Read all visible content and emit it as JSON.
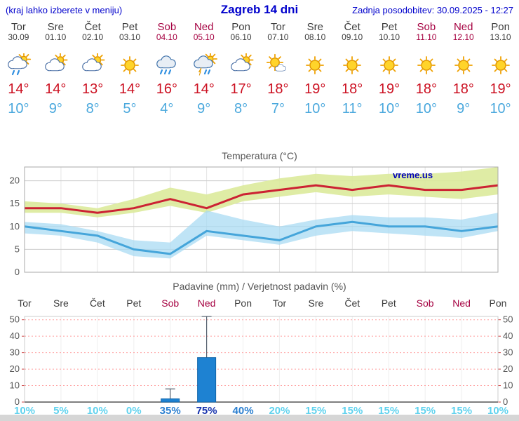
{
  "header": {
    "left_note": "(kraj lahko izberete v meniju)",
    "title": "Zagreb 14 dni",
    "updated": "Zadnja posodobitev: 30.09.2025 - 12:27"
  },
  "colors": {
    "header_blue": "#0000cc",
    "title_blue": "#0000bb",
    "weekday_gray": "#3c3c3c",
    "weekend_red": "#a50040",
    "tmax_red": "#cc1122",
    "tmin_blue": "#4aa8dd",
    "bar_blue": "#1e82d2",
    "bar_border": "#1266aa",
    "pop_low": "#5fd2ee",
    "pop_med": "#2b7fd0",
    "pop_high": "#1733ad",
    "grid_gray": "#cccccc",
    "precip_grid_red": "#ff9e9e"
  },
  "days": [
    {
      "name": "Tor",
      "date": "30.09",
      "weekend": false,
      "icon": "sun-showers",
      "tmax": "14°",
      "tmin": "10°",
      "pop": "10%",
      "pop_level": "low"
    },
    {
      "name": "Sre",
      "date": "01.10",
      "weekend": false,
      "icon": "partly-cloudy",
      "tmax": "14°",
      "tmin": "9°",
      "pop": "5%",
      "pop_level": "low"
    },
    {
      "name": "Čet",
      "date": "02.10",
      "weekend": false,
      "icon": "partly-cloudy",
      "tmax": "13°",
      "tmin": "8°",
      "pop": "10%",
      "pop_level": "low"
    },
    {
      "name": "Pet",
      "date": "03.10",
      "weekend": false,
      "icon": "sunny",
      "tmax": "14°",
      "tmin": "5°",
      "pop": "0%",
      "pop_level": "low"
    },
    {
      "name": "Sob",
      "date": "04.10",
      "weekend": true,
      "icon": "rain",
      "tmax": "16°",
      "tmin": "4°",
      "pop": "35%",
      "pop_level": "med"
    },
    {
      "name": "Ned",
      "date": "05.10",
      "weekend": true,
      "icon": "thunderstorm",
      "tmax": "14°",
      "tmin": "9°",
      "pop": "75%",
      "pop_level": "high"
    },
    {
      "name": "Pon",
      "date": "06.10",
      "weekend": false,
      "icon": "partly-cloudy",
      "tmax": "17°",
      "tmin": "8°",
      "pop": "40%",
      "pop_level": "med"
    },
    {
      "name": "Tor",
      "date": "07.10",
      "weekend": false,
      "icon": "mostly-sunny",
      "tmax": "18°",
      "tmin": "7°",
      "pop": "20%",
      "pop_level": "low"
    },
    {
      "name": "Sre",
      "date": "08.10",
      "weekend": false,
      "icon": "sunny",
      "tmax": "19°",
      "tmin": "10°",
      "pop": "15%",
      "pop_level": "low"
    },
    {
      "name": "Čet",
      "date": "09.10",
      "weekend": false,
      "icon": "sunny",
      "tmax": "18°",
      "tmin": "11°",
      "pop": "15%",
      "pop_level": "low"
    },
    {
      "name": "Pet",
      "date": "10.10",
      "weekend": false,
      "icon": "sunny",
      "tmax": "19°",
      "tmin": "10°",
      "pop": "15%",
      "pop_level": "low"
    },
    {
      "name": "Sob",
      "date": "11.10",
      "weekend": true,
      "icon": "sunny",
      "tmax": "18°",
      "tmin": "10°",
      "pop": "15%",
      "pop_level": "low"
    },
    {
      "name": "Ned",
      "date": "12.10",
      "weekend": true,
      "icon": "sunny",
      "tmax": "18°",
      "tmin": "9°",
      "pop": "15%",
      "pop_level": "low"
    },
    {
      "name": "Pon",
      "date": "13.10",
      "weekend": false,
      "icon": "sunny",
      "tmax": "19°",
      "tmin": "10°",
      "pop": "10%",
      "pop_level": "low"
    }
  ],
  "chart_data": [
    {
      "type": "line",
      "title": "Temperatura (°C)",
      "watermark": "vreme.us",
      "categories": [
        "30.09",
        "01.10",
        "02.10",
        "03.10",
        "04.10",
        "05.10",
        "06.10",
        "07.10",
        "08.10",
        "09.10",
        "10.10",
        "11.10",
        "12.10",
        "13.10"
      ],
      "ylim": [
        0,
        23
      ],
      "yticks": [
        0,
        5,
        10,
        15,
        20
      ],
      "grid": true,
      "series": [
        {
          "name": "Tmax",
          "color": "#cc2233",
          "values": [
            14,
            14,
            13,
            14,
            16,
            14,
            17,
            18,
            19,
            18,
            19,
            18,
            18,
            19
          ]
        },
        {
          "name": "Tmax razpon",
          "fill": "#dcea9b",
          "upper": [
            15.5,
            15,
            14,
            16,
            18.5,
            17,
            19,
            20.5,
            21.5,
            21,
            21.5,
            21.5,
            22,
            23
          ],
          "lower": [
            13,
            13,
            12,
            13,
            14.5,
            13,
            15.5,
            16.5,
            17.5,
            16.5,
            17,
            16.5,
            16,
            17
          ]
        },
        {
          "name": "Tmin",
          "color": "#45a5da",
          "values": [
            10,
            9,
            8,
            5,
            4,
            9,
            8,
            7,
            10,
            11,
            10,
            10,
            9,
            10
          ]
        },
        {
          "name": "Tmin razpon",
          "fill": "#a6d9f2",
          "upper": [
            11,
            10.5,
            9,
            7,
            6.5,
            13.5,
            11.5,
            10,
            11.5,
            12.5,
            12,
            12,
            11.5,
            13
          ],
          "lower": [
            8.5,
            8,
            6.5,
            3.5,
            3,
            8,
            7,
            6,
            8,
            9,
            8.5,
            8,
            7.5,
            9
          ]
        }
      ]
    },
    {
      "type": "bar",
      "title": "Padavine (mm) / Verjetnost padavin (%)",
      "categories": [
        "Tor",
        "Sre",
        "Čet",
        "Pet",
        "Sob",
        "Ned",
        "Pon",
        "Tor",
        "Sre",
        "Čet",
        "Pet",
        "Sob",
        "Ned",
        "Pon"
      ],
      "values": [
        0,
        0,
        0,
        0,
        2,
        27,
        0,
        0,
        0,
        0,
        0,
        0,
        0,
        0
      ],
      "whisker_max": [
        0,
        0,
        0,
        0,
        8,
        52,
        0,
        0,
        0,
        0,
        0,
        0,
        0,
        0
      ],
      "probabilities": [
        "10%",
        "5%",
        "10%",
        "0%",
        "35%",
        "75%",
        "40%",
        "20%",
        "15%",
        "15%",
        "15%",
        "15%",
        "15%",
        "10%"
      ],
      "ylim": [
        0,
        52
      ],
      "yticks": [
        0,
        10,
        20,
        30,
        40,
        50
      ]
    }
  ]
}
